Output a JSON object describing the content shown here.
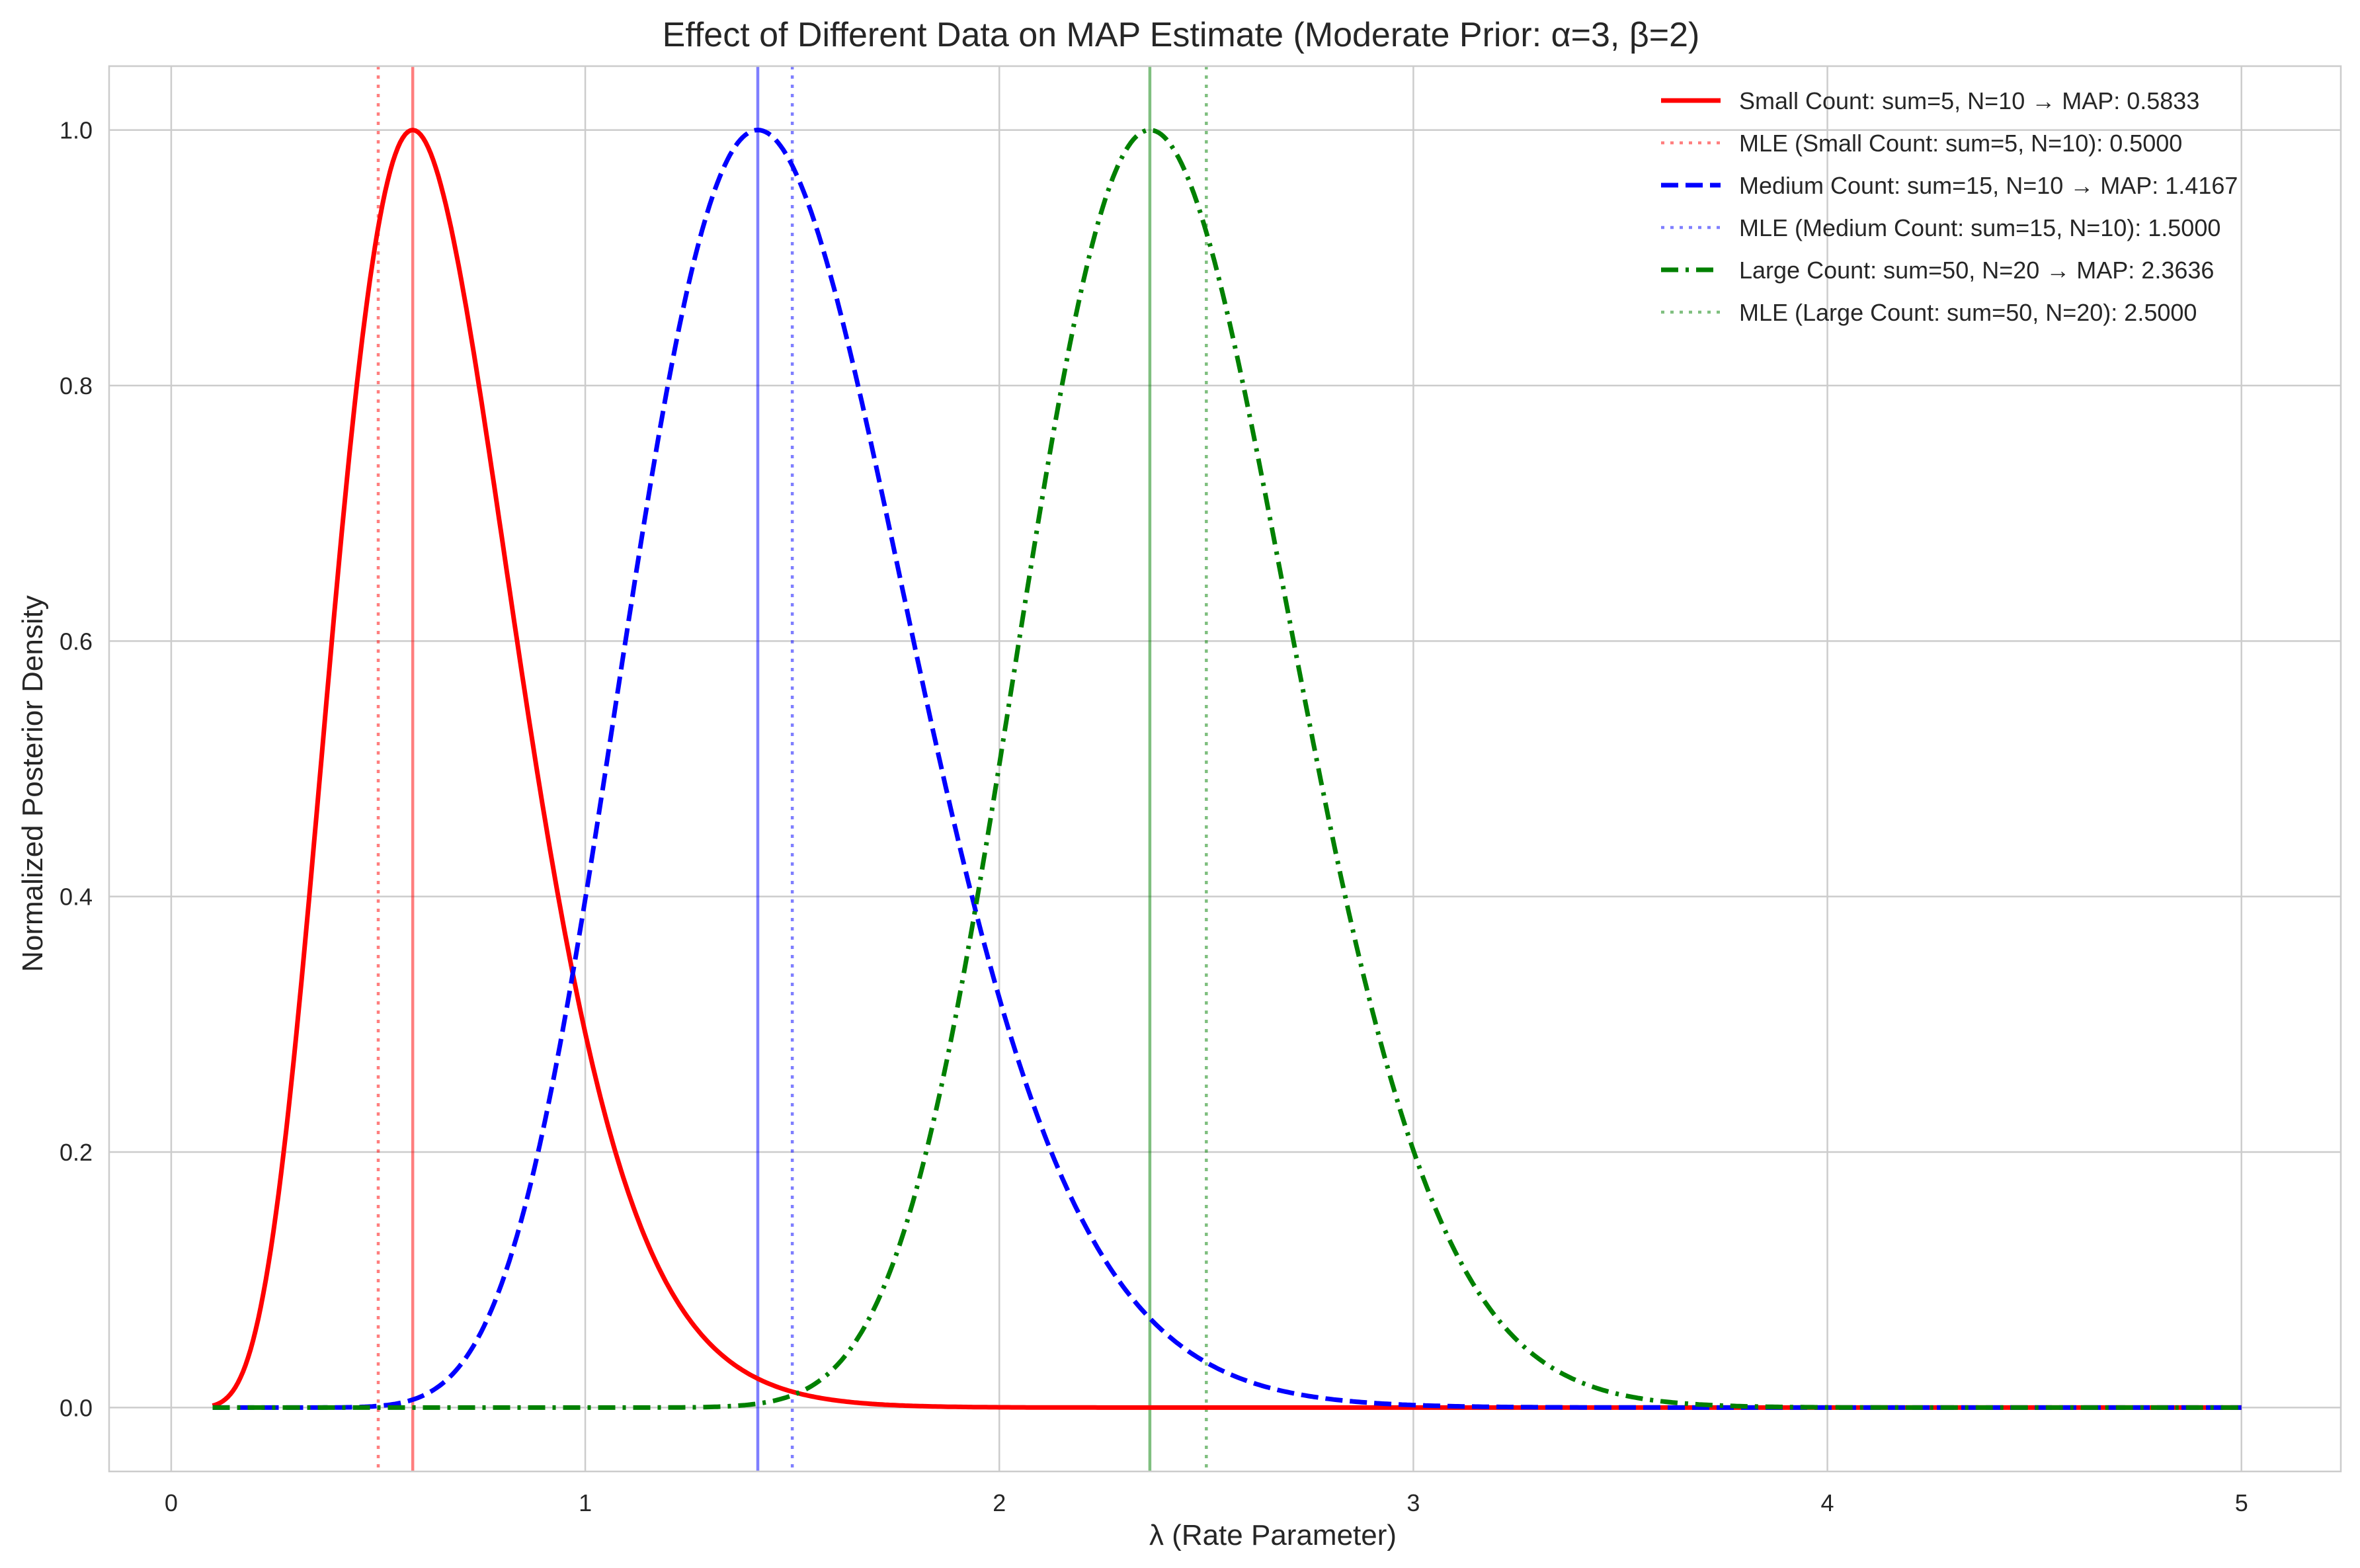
{
  "chart_data": {
    "type": "line",
    "title": "Effect of Different Data on MAP Estimate (Moderate Prior: α=3, β=2)",
    "xlabel": "λ (Rate Parameter)",
    "ylabel": "Normalized Posterior Density",
    "xlim": [
      -0.15,
      5.24
    ],
    "ylim": [
      -0.05,
      1.05
    ],
    "x_range": [
      0.1,
      5.0
    ],
    "xticks": [
      0,
      1,
      2,
      3,
      4,
      5
    ],
    "xtick_labels": [
      "0",
      "1",
      "2",
      "3",
      "4",
      "5"
    ],
    "yticks": [
      0.0,
      0.2,
      0.4,
      0.6,
      0.8,
      1.0
    ],
    "ytick_labels": [
      "0.0",
      "0.2",
      "0.4",
      "0.6",
      "0.8",
      "1.0"
    ],
    "grid": true,
    "legend_position": "top-right",
    "prior": {
      "alpha": 3,
      "beta": 2
    },
    "series": [
      {
        "name": "Small Count: sum=5, N=10 → MAP: 0.5833",
        "sum": 5,
        "N": 10,
        "map": 0.5833,
        "mle": 0.5,
        "mle_label": "MLE (Small Count: sum=5, N=10): 0.5000",
        "color": "#ff0000",
        "dash": "solid"
      },
      {
        "name": "Medium Count: sum=15, N=10 → MAP: 1.4167",
        "sum": 15,
        "N": 10,
        "map": 1.4167,
        "mle": 1.5,
        "mle_label": "MLE (Medium Count: sum=15, N=10): 1.5000",
        "color": "#0000ff",
        "dash": "dashed"
      },
      {
        "name": "Large Count: sum=50, N=20 → MAP: 2.3636",
        "sum": 50,
        "N": 20,
        "map": 2.3636,
        "mle": 2.5,
        "mle_label": "MLE (Large Count: sum=50, N=20): 2.5000",
        "color": "#008000",
        "dash": "dashdot"
      }
    ]
  }
}
